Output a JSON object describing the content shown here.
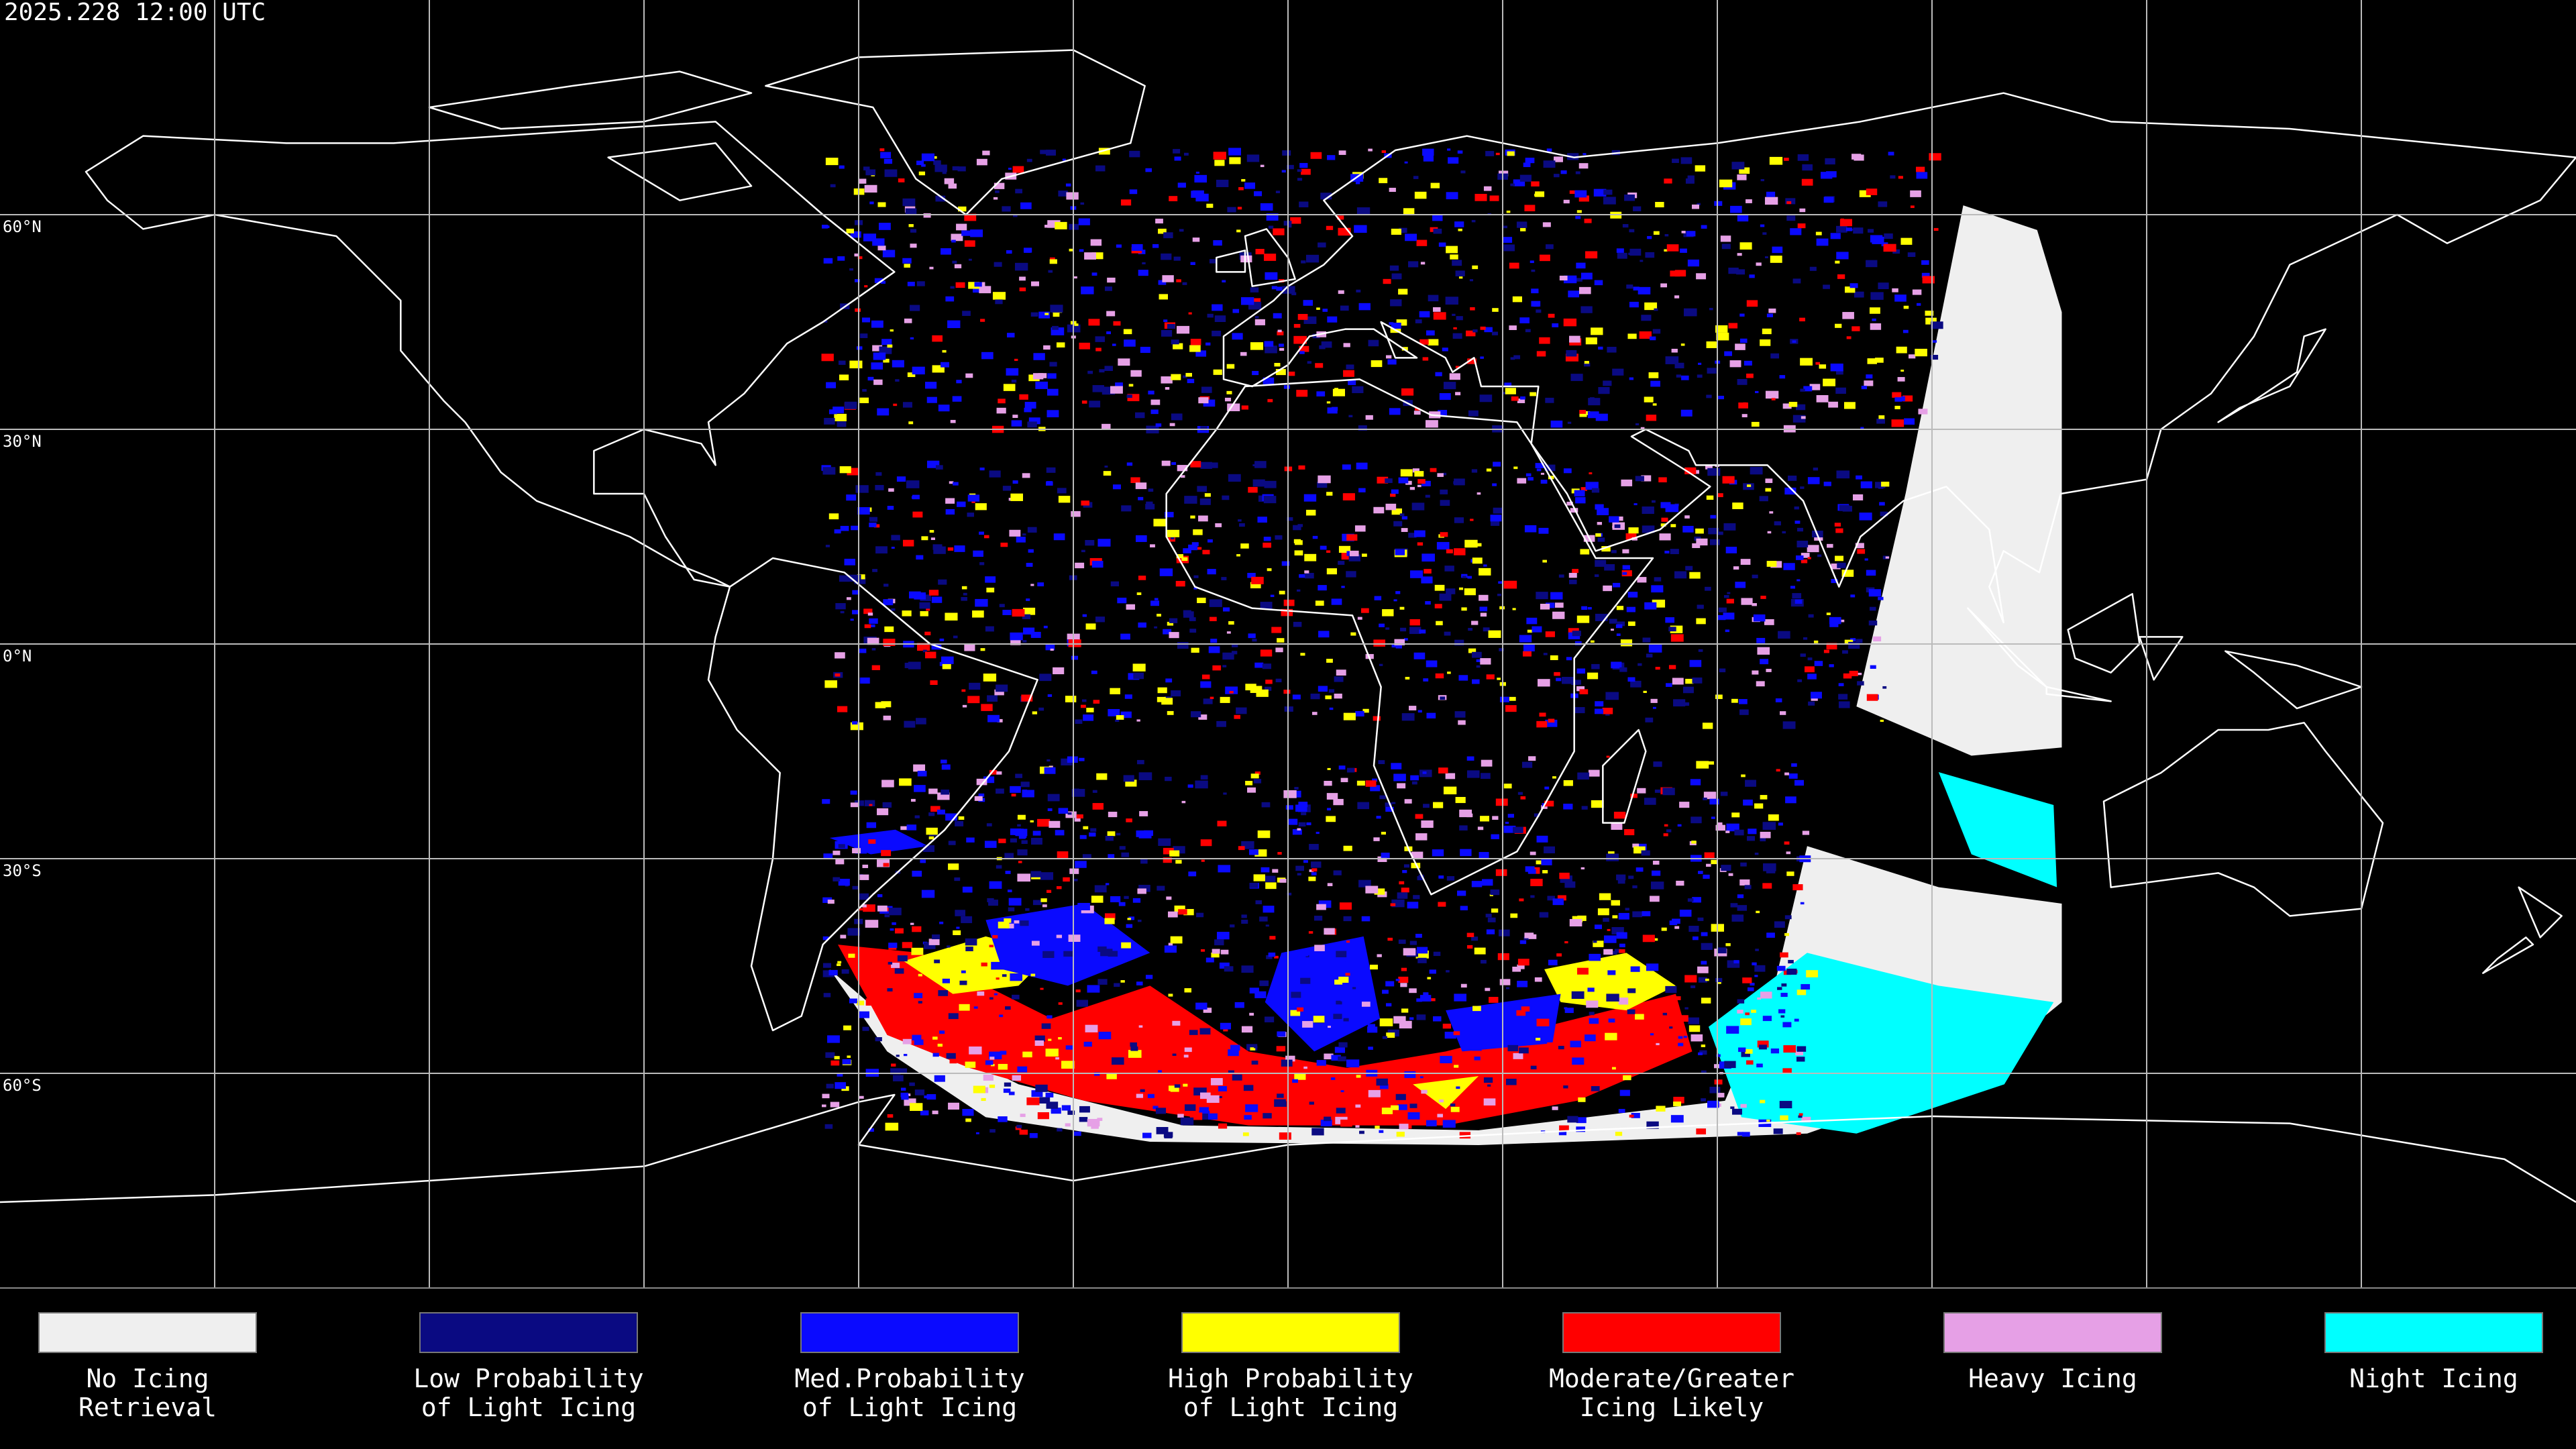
{
  "header": {
    "timestamp": "2025.228 12:00 UTC"
  },
  "map": {
    "latitude_labels": [
      "60°N",
      "30°N",
      "0°N",
      "30°S",
      "60°S"
    ]
  },
  "legend": {
    "items": [
      {
        "label": [
          "No Icing",
          "Retrieval"
        ],
        "color": "#efefef"
      },
      {
        "label": [
          "Low Probability",
          "of Light Icing"
        ],
        "color": "#0a0a82"
      },
      {
        "label": [
          "Med.Probability",
          "of Light Icing"
        ],
        "color": "#0a0aff"
      },
      {
        "label": [
          "High Probability",
          "of Light Icing"
        ],
        "color": "#ffff00"
      },
      {
        "label": [
          "Moderate/Greater",
          "Icing Likely"
        ],
        "color": "#ff0000"
      },
      {
        "label": [
          "Heavy Icing"
        ],
        "color": "#e6a0e6"
      },
      {
        "label": [
          "Night Icing"
        ],
        "color": "#00ffff"
      }
    ]
  }
}
